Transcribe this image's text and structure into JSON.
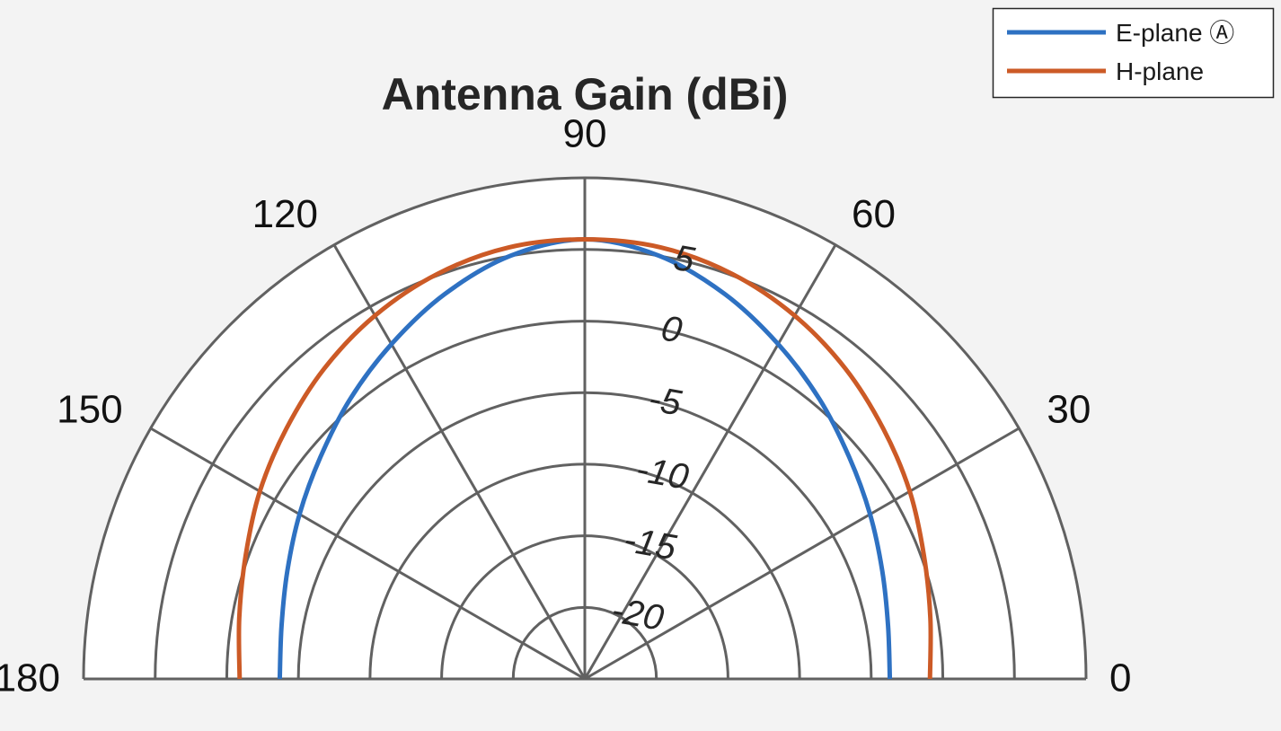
{
  "chart_data": {
    "type": "line",
    "polar": true,
    "title": "Antenna Gain (dBi)",
    "theta_unit": "degrees",
    "theta_range": [
      0,
      180
    ],
    "theta_ticks": [
      0,
      30,
      60,
      90,
      120,
      150,
      180
    ],
    "theta_tick_labels": [
      "0",
      "30",
      "60",
      "90",
      "120",
      "150",
      "180"
    ],
    "r_range": [
      -25,
      10
    ],
    "r_ticks": [
      -20,
      -15,
      -10,
      -5,
      0,
      5
    ],
    "r_tick_labels": [
      "-20",
      "-15",
      "-10",
      "-5",
      "0",
      "5"
    ],
    "grid": true,
    "legend_position": "top-right",
    "colors": {
      "background": "#f3f3f3",
      "plot_area": "#ffffff",
      "grid": "#616161"
    },
    "series": [
      {
        "name": "E-plane Ⓐ",
        "color": "#2e71c2",
        "theta": [
          0,
          10,
          20,
          30,
          40,
          50,
          60,
          70,
          80,
          90,
          100,
          110,
          120,
          130,
          140,
          150,
          160,
          170,
          180
        ],
        "r": [
          -3.7,
          -3.5,
          -2.9,
          -2.0,
          -0.9,
          0.5,
          2.0,
          3.6,
          5.0,
          5.7,
          5.0,
          3.6,
          2.0,
          0.5,
          -0.9,
          -2.0,
          -2.9,
          -3.5,
          -3.7
        ]
      },
      {
        "name": "H-plane",
        "color": "#cc5a26",
        "theta": [
          0,
          10,
          20,
          30,
          40,
          50,
          60,
          70,
          80,
          90,
          100,
          110,
          120,
          130,
          140,
          150,
          160,
          170,
          180
        ],
        "r": [
          -0.9,
          -0.5,
          0.2,
          1.2,
          2.2,
          3.3,
          4.3,
          5.1,
          5.6,
          5.7,
          5.6,
          5.1,
          4.3,
          3.3,
          2.2,
          1.2,
          0.2,
          -0.5,
          -0.9
        ]
      }
    ]
  }
}
